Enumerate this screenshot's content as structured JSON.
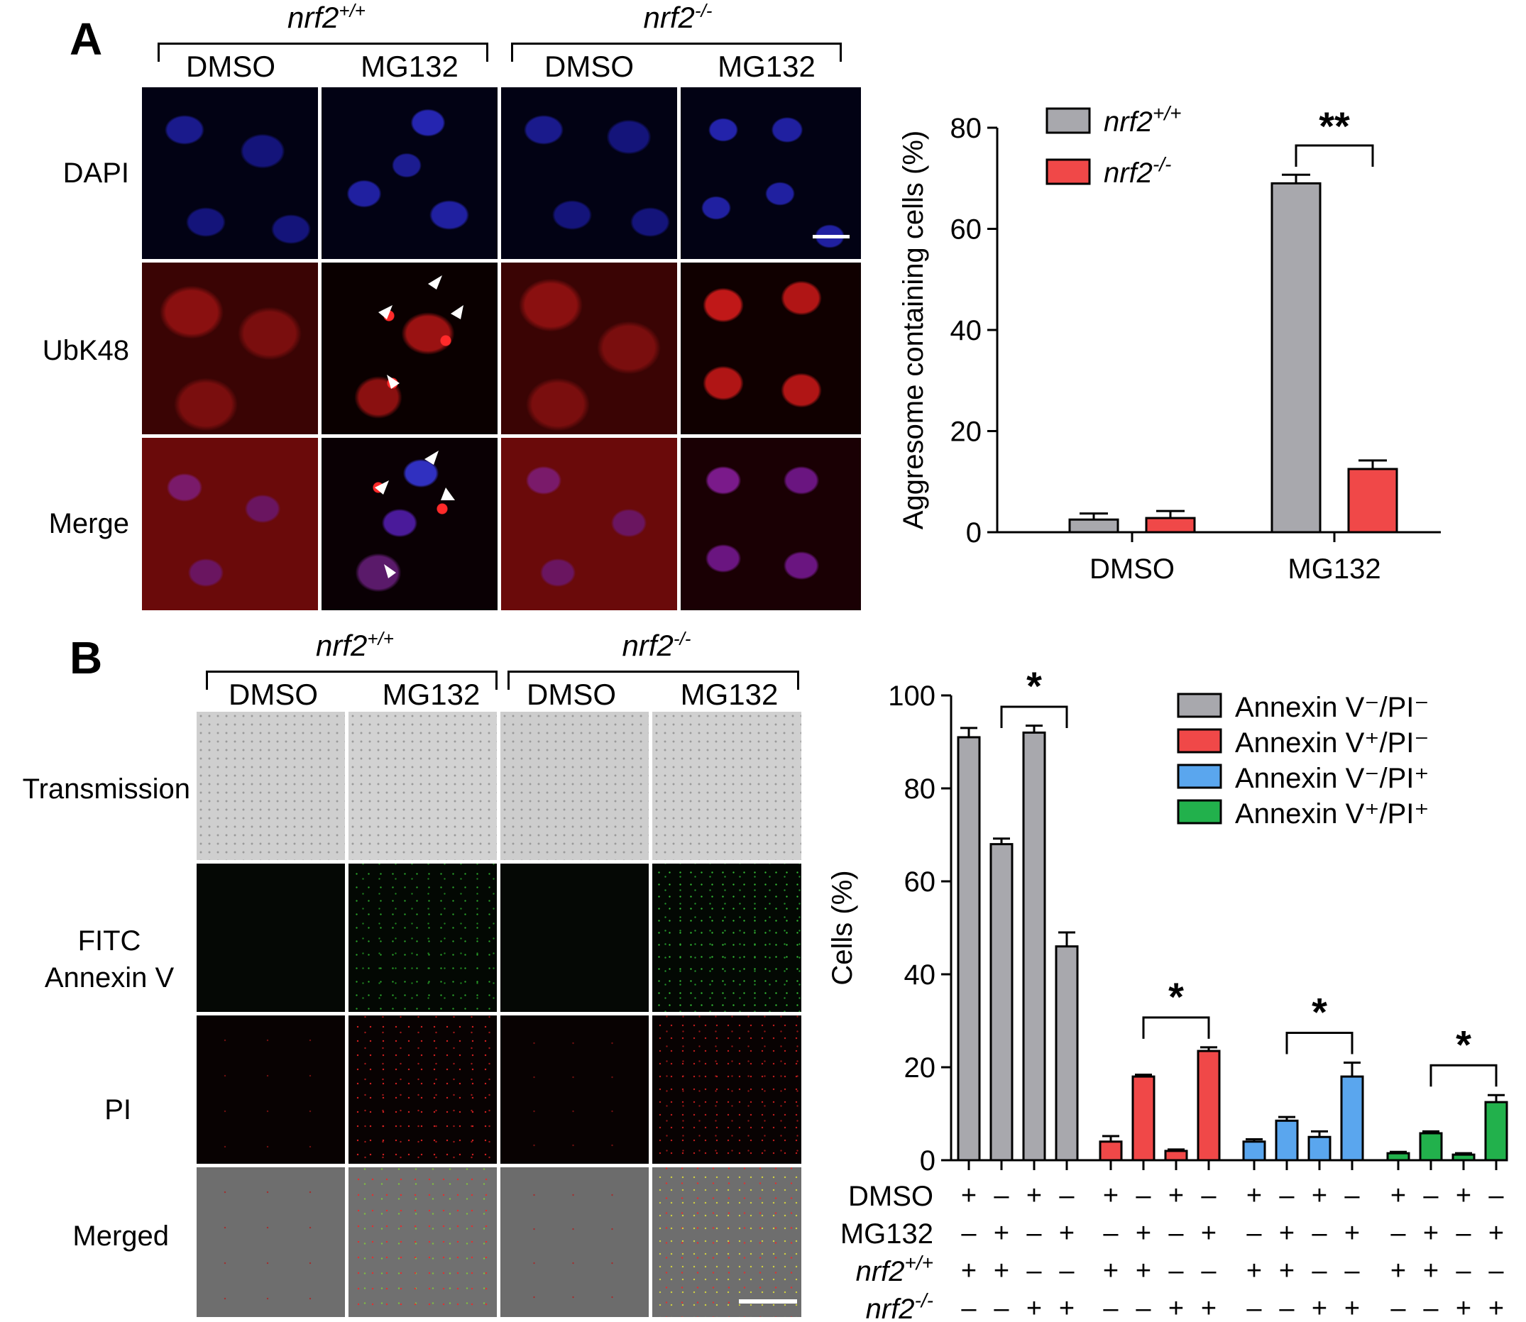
{
  "panel_a": {
    "letter": "A",
    "genotypes": [
      {
        "base": "nrf2",
        "sup": "+/+"
      },
      {
        "base": "nrf2",
        "sup": "-/-"
      }
    ],
    "treatments": [
      "DMSO",
      "MG132",
      "DMSO",
      "MG132"
    ],
    "rows": [
      "DAPI",
      "UbK48",
      "Merge"
    ]
  },
  "panel_b": {
    "letter": "B",
    "genotypes": [
      {
        "base": "nrf2",
        "sup": "+/+"
      },
      {
        "base": "nrf2",
        "sup": "-/-"
      }
    ],
    "treatments": [
      "DMSO",
      "MG132",
      "DMSO",
      "MG132"
    ],
    "rows": [
      "Transmission",
      "FITC\nAnnexin V",
      "PI",
      "Merged"
    ]
  },
  "colors": {
    "gray": "#a8a8ad",
    "red": "#f04848",
    "blue": "#5aa6ee",
    "green": "#22b14c"
  },
  "chart_data": [
    {
      "type": "bar",
      "ylabel": "Aggresome containing cells (%)",
      "categories": [
        "DMSO",
        "MG132"
      ],
      "ylim": [
        0,
        80
      ],
      "yticks": [
        0,
        20,
        40,
        60,
        80
      ],
      "series": [
        {
          "name_base": "nrf2",
          "name_sup": "+/+",
          "color": "#a8a8ad",
          "values": [
            2.5,
            69
          ],
          "errors": [
            1.2,
            1.7
          ]
        },
        {
          "name_base": "nrf2",
          "name_sup": "-/-",
          "color": "#f04848",
          "values": [
            2.8,
            12.5
          ],
          "errors": [
            1.4,
            1.7
          ]
        }
      ],
      "significance": [
        {
          "category": "MG132",
          "label": "**"
        }
      ],
      "legend_position": "top-left"
    },
    {
      "type": "bar",
      "ylabel": "Cells (%)",
      "ylim": [
        0,
        100
      ],
      "yticks": [
        0,
        20,
        40,
        60,
        80,
        100
      ],
      "series": [
        {
          "name": "Annexin V⁻/PI⁻",
          "color": "#a8a8ad",
          "values": [
            91,
            68,
            92,
            46
          ],
          "errors": [
            2,
            1.2,
            1.5,
            3
          ]
        },
        {
          "name": "Annexin V⁺/PI⁻",
          "color": "#f04848",
          "values": [
            4,
            18,
            2,
            23.5
          ],
          "errors": [
            1.2,
            0.4,
            0.3,
            0.8
          ]
        },
        {
          "name": "Annexin V⁻/PI⁺",
          "color": "#5aa6ee",
          "values": [
            4,
            8.5,
            5,
            18
          ],
          "errors": [
            0.5,
            0.8,
            1.2,
            3
          ]
        },
        {
          "name": "Annexin V⁺/PI⁺",
          "color": "#22b14c",
          "values": [
            1.5,
            5.8,
            1.2,
            12.5
          ],
          "errors": [
            0.3,
            0.4,
            0.3,
            1.5
          ]
        }
      ],
      "significance": [
        {
          "series": 0,
          "label": "*"
        },
        {
          "series": 1,
          "label": "*"
        },
        {
          "series": 2,
          "label": "*"
        },
        {
          "series": 3,
          "label": "*"
        }
      ],
      "condition_rows": [
        {
          "label": "DMSO",
          "signs": [
            "+",
            "–",
            "+",
            "–"
          ]
        },
        {
          "label": "MG132",
          "signs": [
            "–",
            "+",
            "–",
            "+"
          ]
        },
        {
          "label_base": "nrf2",
          "label_sup": "+/+",
          "signs": [
            "+",
            "+",
            "–",
            "–"
          ]
        },
        {
          "label_base": "nrf2",
          "label_sup": "-/-",
          "signs": [
            "–",
            "–",
            "+",
            "+"
          ]
        }
      ],
      "legend_position": "top-right"
    }
  ]
}
